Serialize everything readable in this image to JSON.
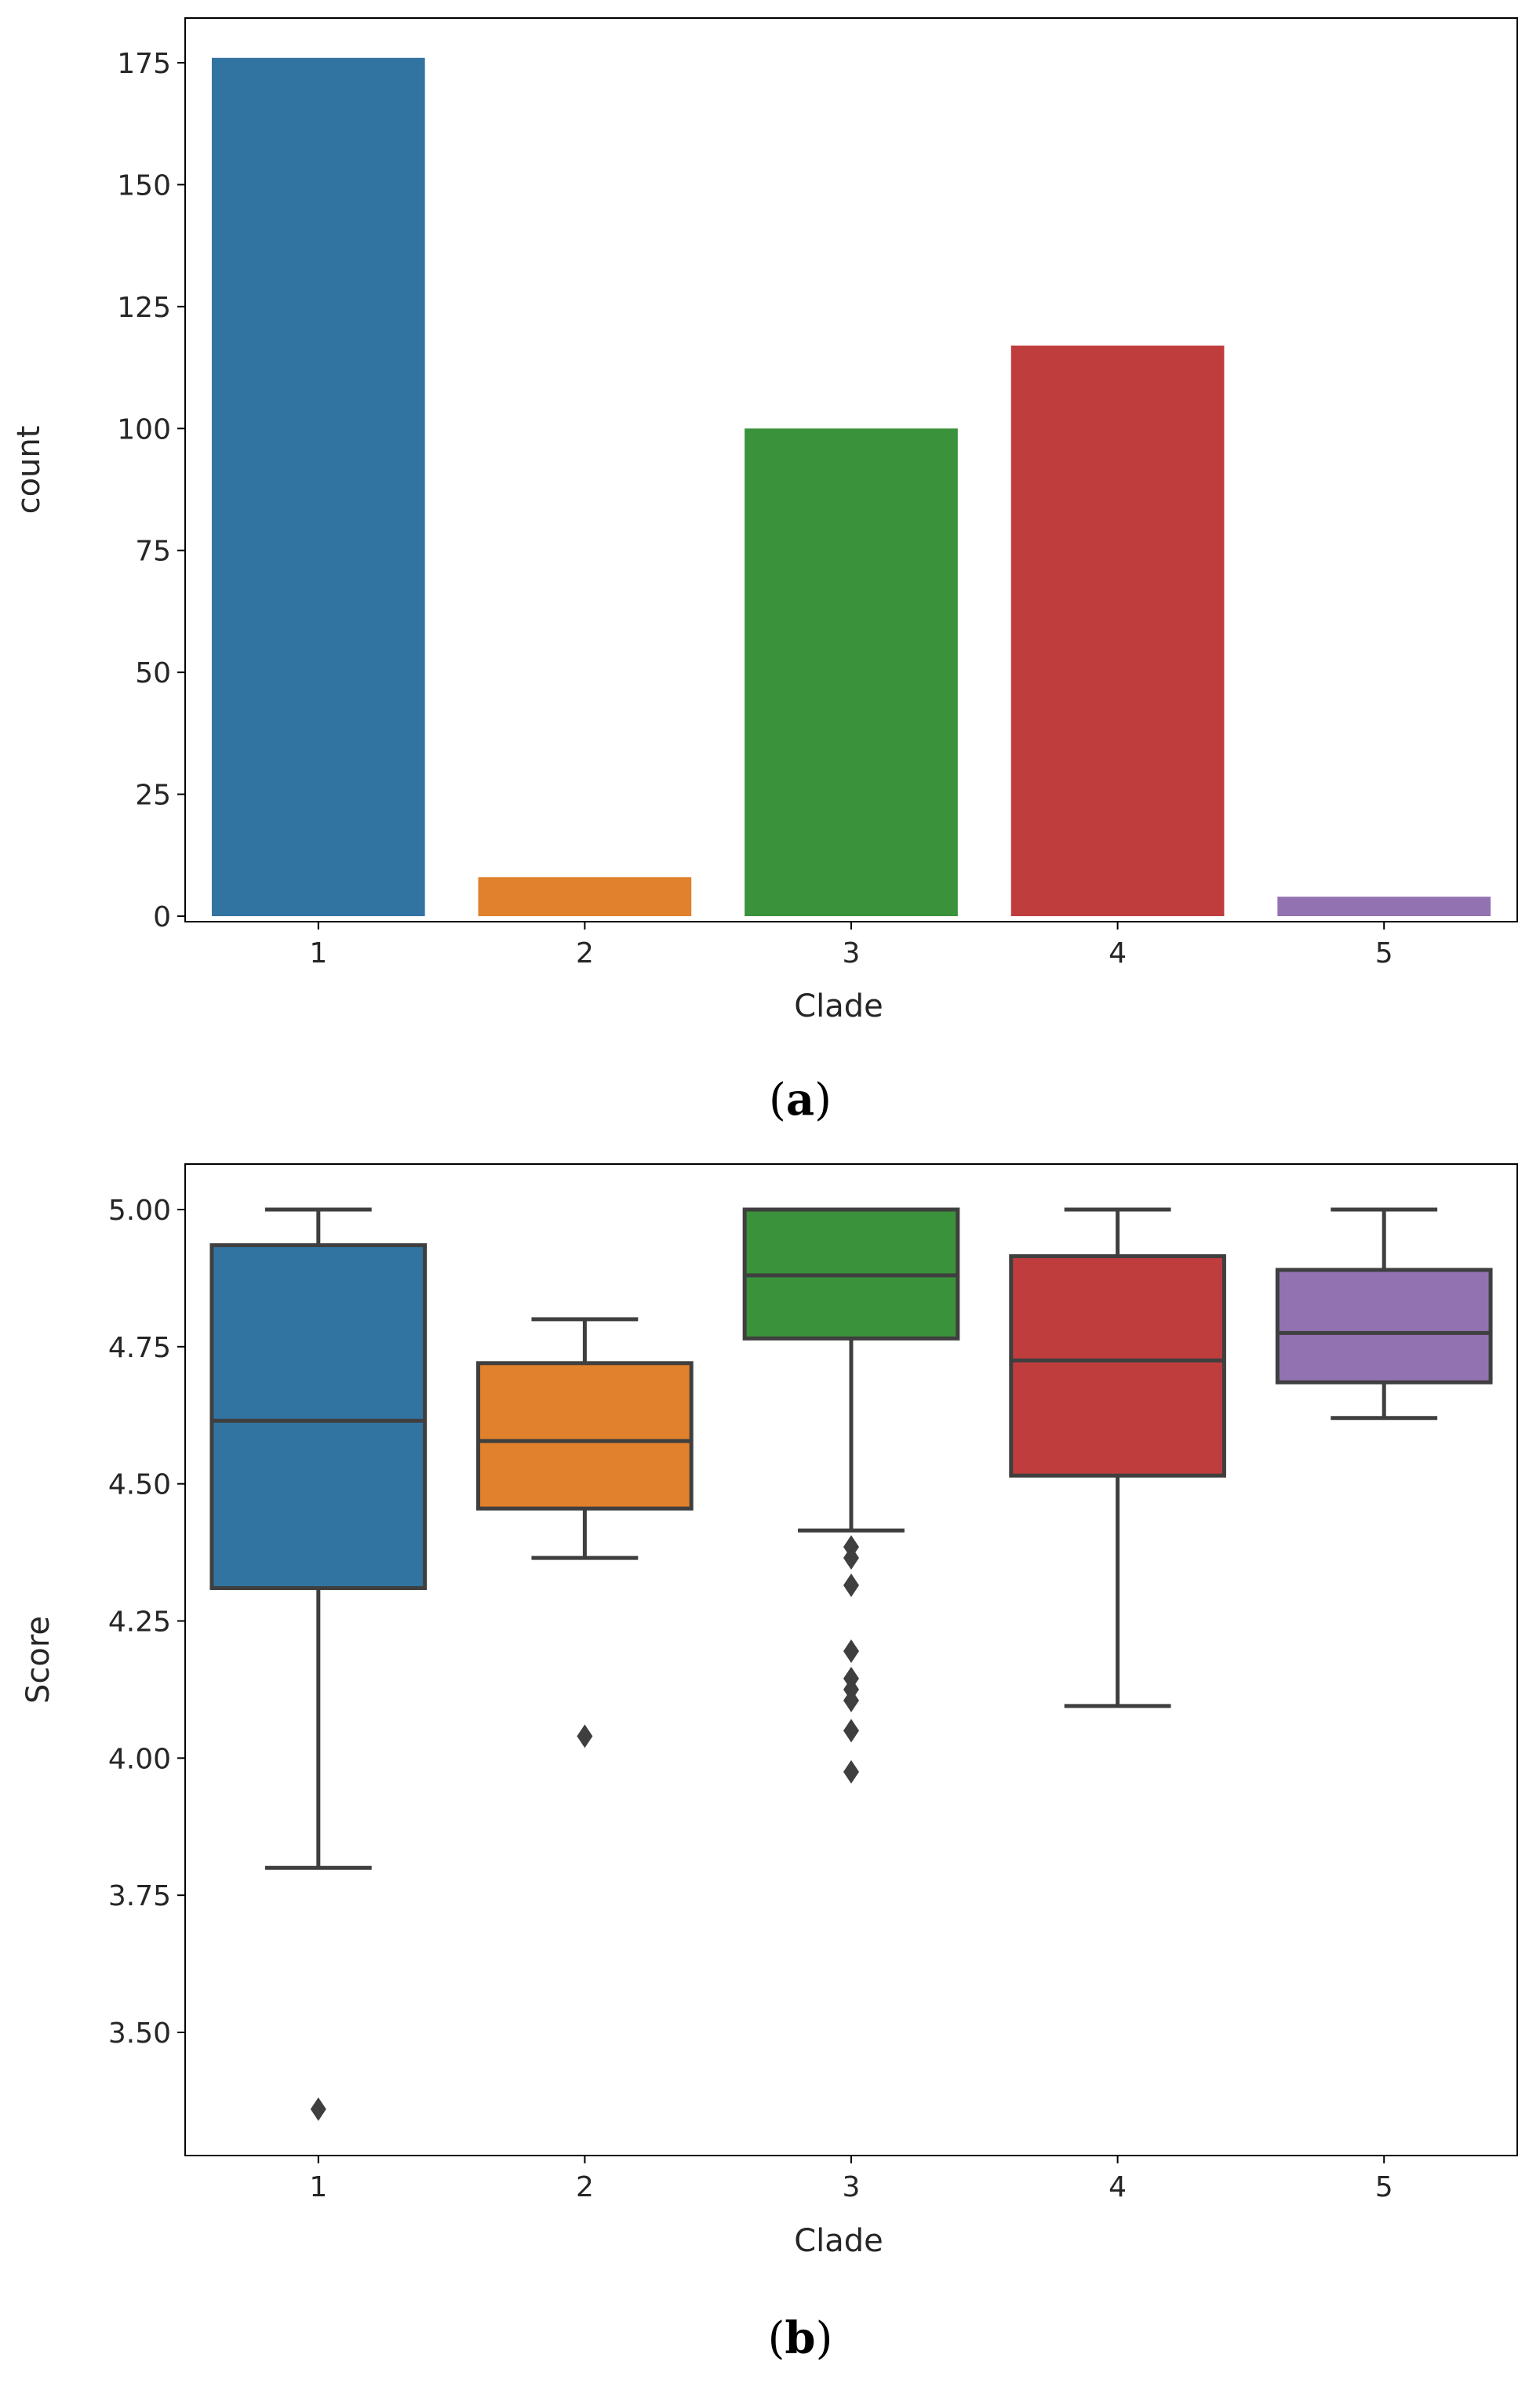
{
  "palette": [
    "#3274a1",
    "#e1812c",
    "#3a923a",
    "#c03d3e",
    "#9372b2"
  ],
  "chart_data": [
    {
      "type": "bar",
      "panel_label": {
        "open": "(",
        "letter": "a",
        "close": ")"
      },
      "xlabel": "Clade",
      "ylabel": "count",
      "categories": [
        "1",
        "2",
        "3",
        "4",
        "5"
      ],
      "values": [
        176,
        8,
        100,
        117,
        4
      ],
      "ylim": [
        0,
        185
      ],
      "yticks": [
        0,
        25,
        50,
        75,
        100,
        125,
        150,
        175
      ],
      "ytick_labels": [
        "0",
        "25",
        "50",
        "75",
        "100",
        "125",
        "150",
        "175"
      ],
      "grid": false,
      "legend": "none"
    },
    {
      "type": "box",
      "panel_label": {
        "open": "(",
        "letter": "b",
        "close": ")"
      },
      "xlabel": "Clade",
      "ylabel": "Score",
      "categories": [
        "1",
        "2",
        "3",
        "4",
        "5"
      ],
      "boxes": [
        {
          "whisker_low": 3.8,
          "q1": 4.31,
          "median": 4.615,
          "q3": 4.935,
          "whisker_high": 5.0,
          "outliers": [
            3.36
          ]
        },
        {
          "whisker_low": 4.365,
          "q1": 4.455,
          "median": 4.578,
          "q3": 4.72,
          "whisker_high": 4.8,
          "outliers": [
            4.04
          ]
        },
        {
          "whisker_low": 4.415,
          "q1": 4.765,
          "median": 4.88,
          "q3": 5.0,
          "whisker_high": 5.0,
          "outliers": [
            4.385,
            4.365,
            4.315,
            4.195,
            4.145,
            4.125,
            4.105,
            4.05,
            3.975
          ]
        },
        {
          "whisker_low": 4.095,
          "q1": 4.515,
          "median": 4.725,
          "q3": 4.915,
          "whisker_high": 5.0,
          "outliers": []
        },
        {
          "whisker_low": 4.62,
          "q1": 4.685,
          "median": 4.775,
          "q3": 4.89,
          "whisker_high": 5.0,
          "outliers": []
        }
      ],
      "ylim": [
        3.3,
        5.08
      ],
      "yticks": [
        3.5,
        3.75,
        4.0,
        4.25,
        4.5,
        4.75,
        5.0
      ],
      "ytick_labels": [
        "3.50",
        "3.75",
        "4.00",
        "4.25",
        "4.50",
        "4.75",
        "5.00"
      ],
      "grid": false,
      "legend": "none"
    }
  ]
}
